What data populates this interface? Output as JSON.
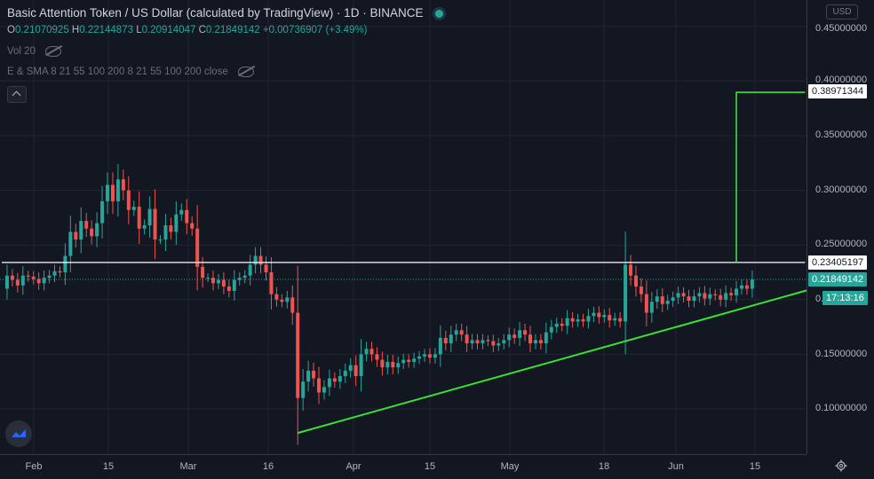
{
  "header": {
    "title": "Basic Attention Token / US Dollar (calculated by TradingView) · 1D · BINANCE",
    "ohlc": {
      "o_label": "O",
      "o": "0.21070925",
      "h_label": "H",
      "h": "0.22144873",
      "l_label": "L",
      "l": "0.20914047",
      "c_label": "C",
      "c": "0.21849142",
      "change": "+0.00736907 (+3.49%)"
    },
    "vol_label": "Vol 20",
    "indicator_label": "E & SMA 8 21 55 100 200 8 21 55 100 200 close"
  },
  "yaxis": {
    "currency": "USD",
    "ticks": [
      "0.45000000",
      "0.40000000",
      "0.35000000",
      "0.30000000",
      "0.25000000",
      "0.15000000",
      "0.10000000"
    ],
    "partial_tick": "0.",
    "tags": {
      "target": "0.38971344",
      "level": "0.23405197",
      "last": "0.21849142",
      "countdown": "17:13:16"
    }
  },
  "xaxis": {
    "ticks": [
      "Feb",
      "15",
      "Mar",
      "16",
      "Apr",
      "15",
      "May",
      "18",
      "Jun",
      "15"
    ]
  },
  "colors": {
    "up": "#26a69a",
    "down": "#ef5350",
    "trend": "#39e334",
    "level": "#ffffff",
    "background": "#131722"
  },
  "chart_data": {
    "type": "candlestick",
    "title": "Basic Attention Token / US Dollar (calculated by TradingView) · 1D · BINANCE",
    "xlabel": "",
    "ylabel": "",
    "ylim": [
      0.05,
      0.46
    ],
    "grid": true,
    "x_range": [
      "2021-01-24",
      "2021-06-25"
    ],
    "close_series": [
      [
        "2021-01-24",
        0.21
      ],
      [
        "2021-01-25",
        0.222
      ],
      [
        "2021-01-26",
        0.218
      ],
      [
        "2021-01-27",
        0.213
      ],
      [
        "2021-01-28",
        0.222
      ],
      [
        "2021-01-29",
        0.221
      ],
      [
        "2021-01-30",
        0.219
      ],
      [
        "2021-01-31",
        0.215
      ],
      [
        "2021-02-01",
        0.22
      ],
      [
        "2021-02-02",
        0.222
      ],
      [
        "2021-02-03",
        0.226
      ],
      [
        "2021-02-04",
        0.225
      ],
      [
        "2021-02-05",
        0.24
      ],
      [
        "2021-02-06",
        0.262
      ],
      [
        "2021-02-07",
        0.255
      ],
      [
        "2021-02-08",
        0.272
      ],
      [
        "2021-02-09",
        0.265
      ],
      [
        "2021-02-10",
        0.258
      ],
      [
        "2021-02-11",
        0.27
      ],
      [
        "2021-02-12",
        0.29
      ],
      [
        "2021-02-13",
        0.305
      ],
      [
        "2021-02-14",
        0.29
      ],
      [
        "2021-02-15",
        0.31
      ],
      [
        "2021-02-16",
        0.3
      ],
      [
        "2021-02-17",
        0.282
      ],
      [
        "2021-02-18",
        0.285
      ],
      [
        "2021-02-19",
        0.265
      ],
      [
        "2021-02-20",
        0.268
      ],
      [
        "2021-02-21",
        0.283
      ],
      [
        "2021-02-22",
        0.255
      ],
      [
        "2021-02-23",
        0.255
      ],
      [
        "2021-02-24",
        0.268
      ],
      [
        "2021-02-25",
        0.262
      ],
      [
        "2021-02-26",
        0.278
      ],
      [
        "2021-02-27",
        0.282
      ],
      [
        "2021-02-28",
        0.27
      ],
      [
        "2021-03-01",
        0.265
      ],
      [
        "2021-03-02",
        0.23
      ],
      [
        "2021-03-03",
        0.22
      ],
      [
        "2021-03-04",
        0.22
      ],
      [
        "2021-03-05",
        0.215
      ],
      [
        "2021-03-06",
        0.218
      ],
      [
        "2021-03-07",
        0.212
      ],
      [
        "2021-03-08",
        0.208
      ],
      [
        "2021-03-09",
        0.218
      ],
      [
        "2021-03-10",
        0.22
      ],
      [
        "2021-03-11",
        0.222
      ],
      [
        "2021-03-12",
        0.232
      ],
      [
        "2021-03-13",
        0.24
      ],
      [
        "2021-03-14",
        0.232
      ],
      [
        "2021-03-15",
        0.225
      ],
      [
        "2021-03-16",
        0.205
      ],
      [
        "2021-03-17",
        0.2
      ],
      [
        "2021-03-18",
        0.198
      ],
      [
        "2021-03-19",
        0.202
      ],
      [
        "2021-03-20",
        0.188
      ],
      [
        "2021-03-21",
        0.11
      ],
      [
        "2021-03-22",
        0.125
      ],
      [
        "2021-03-23",
        0.135
      ],
      [
        "2021-03-24",
        0.128
      ],
      [
        "2021-03-25",
        0.115
      ],
      [
        "2021-03-26",
        0.12
      ],
      [
        "2021-03-27",
        0.128
      ],
      [
        "2021-03-28",
        0.125
      ],
      [
        "2021-03-29",
        0.13
      ],
      [
        "2021-03-30",
        0.135
      ],
      [
        "2021-03-31",
        0.14
      ],
      [
        "2021-04-01",
        0.13
      ],
      [
        "2021-04-02",
        0.15
      ],
      [
        "2021-04-03",
        0.155
      ],
      [
        "2021-04-04",
        0.15
      ],
      [
        "2021-04-05",
        0.145
      ],
      [
        "2021-04-06",
        0.138
      ],
      [
        "2021-04-07",
        0.143
      ],
      [
        "2021-04-08",
        0.138
      ],
      [
        "2021-04-09",
        0.142
      ],
      [
        "2021-04-10",
        0.145
      ],
      [
        "2021-04-11",
        0.143
      ],
      [
        "2021-04-12",
        0.146
      ],
      [
        "2021-04-13",
        0.148
      ],
      [
        "2021-04-14",
        0.15
      ],
      [
        "2021-04-15",
        0.147
      ],
      [
        "2021-04-16",
        0.15
      ],
      [
        "2021-04-17",
        0.165
      ],
      [
        "2021-04-18",
        0.16
      ],
      [
        "2021-04-19",
        0.168
      ],
      [
        "2021-04-20",
        0.172
      ],
      [
        "2021-04-21",
        0.168
      ],
      [
        "2021-04-22",
        0.16
      ],
      [
        "2021-04-23",
        0.163
      ],
      [
        "2021-04-24",
        0.16
      ],
      [
        "2021-04-25",
        0.163
      ],
      [
        "2021-04-26",
        0.162
      ],
      [
        "2021-04-27",
        0.158
      ],
      [
        "2021-04-28",
        0.16
      ],
      [
        "2021-04-29",
        0.163
      ],
      [
        "2021-04-30",
        0.168
      ],
      [
        "2021-05-01",
        0.165
      ],
      [
        "2021-05-02",
        0.172
      ],
      [
        "2021-05-03",
        0.168
      ],
      [
        "2021-05-04",
        0.16
      ],
      [
        "2021-05-05",
        0.163
      ],
      [
        "2021-05-06",
        0.16
      ],
      [
        "2021-05-07",
        0.17
      ],
      [
        "2021-05-08",
        0.175
      ],
      [
        "2021-05-09",
        0.178
      ],
      [
        "2021-05-10",
        0.176
      ],
      [
        "2021-05-11",
        0.183
      ],
      [
        "2021-05-12",
        0.18
      ],
      [
        "2021-05-13",
        0.182
      ],
      [
        "2021-05-14",
        0.18
      ],
      [
        "2021-05-15",
        0.185
      ],
      [
        "2021-05-16",
        0.188
      ],
      [
        "2021-05-17",
        0.184
      ],
      [
        "2021-05-18",
        0.186
      ],
      [
        "2021-05-19",
        0.181
      ],
      [
        "2021-05-20",
        0.183
      ],
      [
        "2021-05-21",
        0.18
      ],
      [
        "2021-05-22",
        0.232
      ],
      [
        "2021-05-23",
        0.222
      ],
      [
        "2021-05-24",
        0.212
      ],
      [
        "2021-05-25",
        0.205
      ],
      [
        "2021-05-26",
        0.188
      ],
      [
        "2021-05-27",
        0.198
      ],
      [
        "2021-05-28",
        0.203
      ],
      [
        "2021-05-29",
        0.196
      ],
      [
        "2021-05-30",
        0.199
      ],
      [
        "2021-05-31",
        0.202
      ],
      [
        "2021-06-01",
        0.206
      ],
      [
        "2021-06-02",
        0.203
      ],
      [
        "2021-06-03",
        0.199
      ],
      [
        "2021-06-04",
        0.203
      ],
      [
        "2021-06-05",
        0.206
      ],
      [
        "2021-06-06",
        0.201
      ],
      [
        "2021-06-07",
        0.205
      ],
      [
        "2021-06-08",
        0.204
      ],
      [
        "2021-06-09",
        0.2
      ],
      [
        "2021-06-10",
        0.206
      ],
      [
        "2021-06-11",
        0.204
      ],
      [
        "2021-06-12",
        0.21
      ],
      [
        "2021-06-13",
        0.213
      ],
      [
        "2021-06-14",
        0.21
      ],
      [
        "2021-06-15",
        0.2185
      ]
    ],
    "horizontal_lines": [
      {
        "name": "level",
        "y": 0.23405197,
        "x_from": "2021-01-24",
        "x_to": "2021-06-25",
        "color": "#ffffff"
      },
      {
        "name": "last-price",
        "y": 0.21849142,
        "dotted": true,
        "color": "#26a69a"
      }
    ],
    "trend_line": {
      "from": [
        "2021-03-21",
        0.078
      ],
      "to": [
        "2021-07-09",
        0.227
      ],
      "color": "#39e334"
    },
    "step_line": {
      "points": [
        [
          "2021-06-12",
          0.234
        ],
        [
          "2021-06-12",
          0.38971344
        ],
        [
          "2021-06-25",
          0.38971344
        ]
      ],
      "color": "#39e334"
    }
  }
}
